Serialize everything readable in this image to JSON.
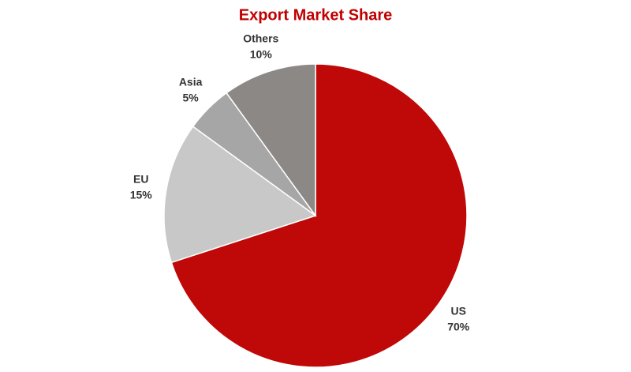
{
  "chart_data": {
    "type": "pie",
    "title": "Export Market Share",
    "categories": [
      "US",
      "EU",
      "Asia",
      "Others"
    ],
    "values": [
      70,
      15,
      5,
      10
    ],
    "value_labels": [
      "70%",
      "15%",
      "5%",
      "10%"
    ],
    "colors": [
      "#bf0808",
      "#c8c8c8",
      "#a6a6a6",
      "#8c8886"
    ],
    "title_color": "#c00000"
  }
}
